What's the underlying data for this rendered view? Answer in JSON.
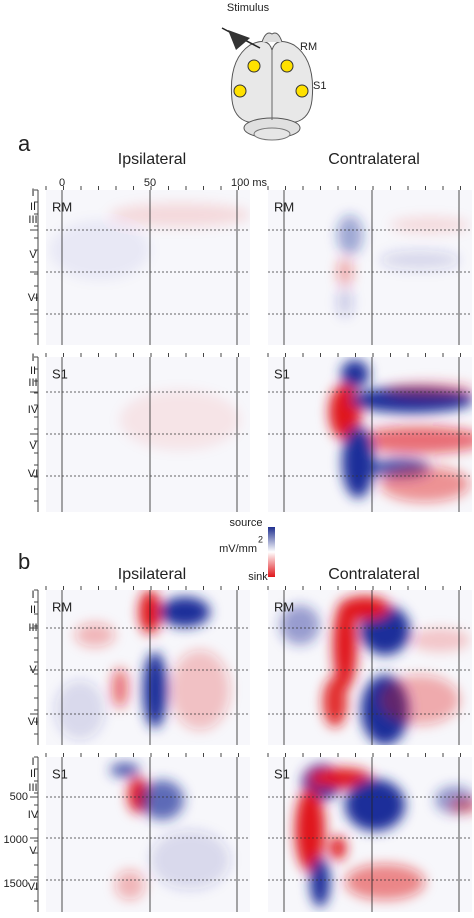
{
  "header": {
    "stimulus": "Stimulus",
    "rm": "RM",
    "s1": "S1"
  },
  "sections": [
    {
      "letter": "a",
      "columns": [
        "Ipsilateral",
        "Contralateral"
      ],
      "time_ticks": [
        "0",
        "50",
        "100 ms"
      ],
      "rows": [
        {
          "layers": [
            "I",
            "II",
            "III",
            "V",
            "VI"
          ],
          "panels": [
            "RM",
            "RM"
          ]
        },
        {
          "layers": [
            "I",
            "II",
            "III",
            "IV",
            "V",
            "VI"
          ],
          "panels": [
            "S1",
            "S1"
          ]
        }
      ]
    },
    {
      "letter": "b",
      "columns": [
        "Ipsilateral",
        "Contralateral"
      ],
      "colorbar": {
        "top": "source",
        "unit": "mV/mm",
        "exponent": "2",
        "bottom": "sink"
      },
      "rows": [
        {
          "layers": [
            "I",
            "II",
            "III",
            "V",
            "VI"
          ],
          "panels": [
            "RM",
            "RM"
          ]
        },
        {
          "layers": [
            "I",
            "II",
            "III",
            "IV",
            "V",
            "VI"
          ],
          "panels": [
            "S1",
            "S1"
          ],
          "depths": [
            "500",
            "1000",
            "1500"
          ]
        }
      ]
    }
  ]
}
